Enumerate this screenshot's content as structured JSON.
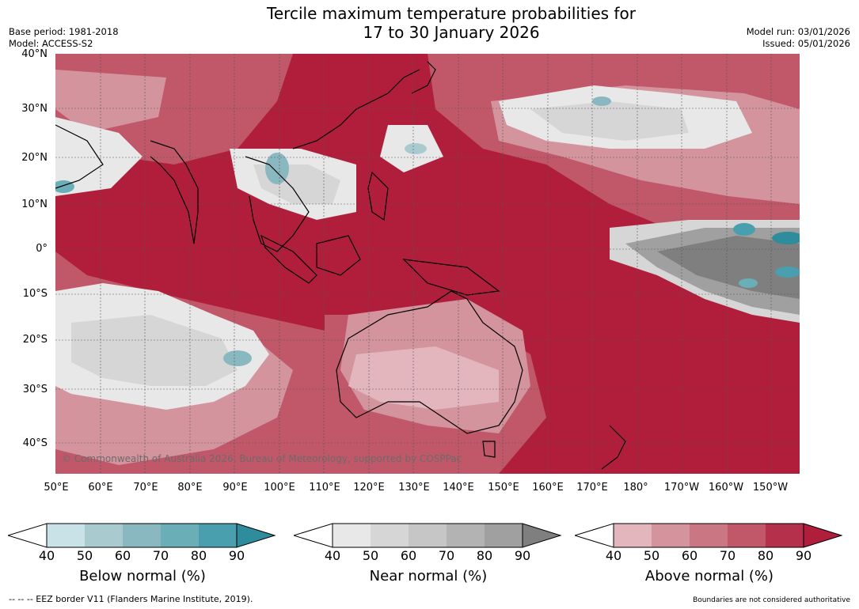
{
  "title": {
    "line1": "Tercile maximum temperature probabilities for",
    "line2": "17 to 30 January 2026"
  },
  "meta_left": {
    "base_period": "Base period: 1981-2018",
    "model": "Model: ACCESS-S2"
  },
  "meta_right": {
    "model_run": "Model run: 03/01/2026",
    "issued": "Issued: 05/01/2026"
  },
  "map": {
    "lat_labels": [
      "40°N",
      "30°N",
      "20°N",
      "10°N",
      "0°",
      "10°S",
      "20°S",
      "30°S",
      "40°S"
    ],
    "lon_labels": [
      "50°E",
      "60°E",
      "70°E",
      "80°E",
      "90°E",
      "100°E",
      "110°E",
      "120°E",
      "130°E",
      "140°E",
      "150°E",
      "160°E",
      "170°E",
      "180°",
      "170°W",
      "160°W",
      "150°W"
    ],
    "credit": "© Commonwealth of Australia 2026, Bureau of Meteorology, supported by COSPPac"
  },
  "colorbars": [
    {
      "title": "Below normal (%)",
      "ticks": [
        "40",
        "50",
        "60",
        "70",
        "80",
        "90"
      ],
      "colors": [
        "#c9e2e8",
        "#a9cbd0",
        "#8ab8c0",
        "#6aaeb8",
        "#4a9fae",
        "#2e8c9c"
      ]
    },
    {
      "title": "Near normal (%)",
      "ticks": [
        "40",
        "50",
        "60",
        "70",
        "80",
        "90"
      ],
      "colors": [
        "#e8e8e8",
        "#d6d6d6",
        "#c6c6c6",
        "#b3b3b3",
        "#a0a0a0",
        "#7f7f7f"
      ]
    },
    {
      "title": "Above normal (%)",
      "ticks": [
        "40",
        "50",
        "60",
        "70",
        "80",
        "90"
      ],
      "colors": [
        "#e3b6bd",
        "#d4949e",
        "#c97782",
        "#c1586a",
        "#b5304a",
        "#b01e3c"
      ]
    }
  ],
  "footer": {
    "eez": "--  --  -- EEZ border V11 (Flanders Marine Institute, 2019).",
    "disclaimer": "Boundaries are not considered authoritative"
  }
}
